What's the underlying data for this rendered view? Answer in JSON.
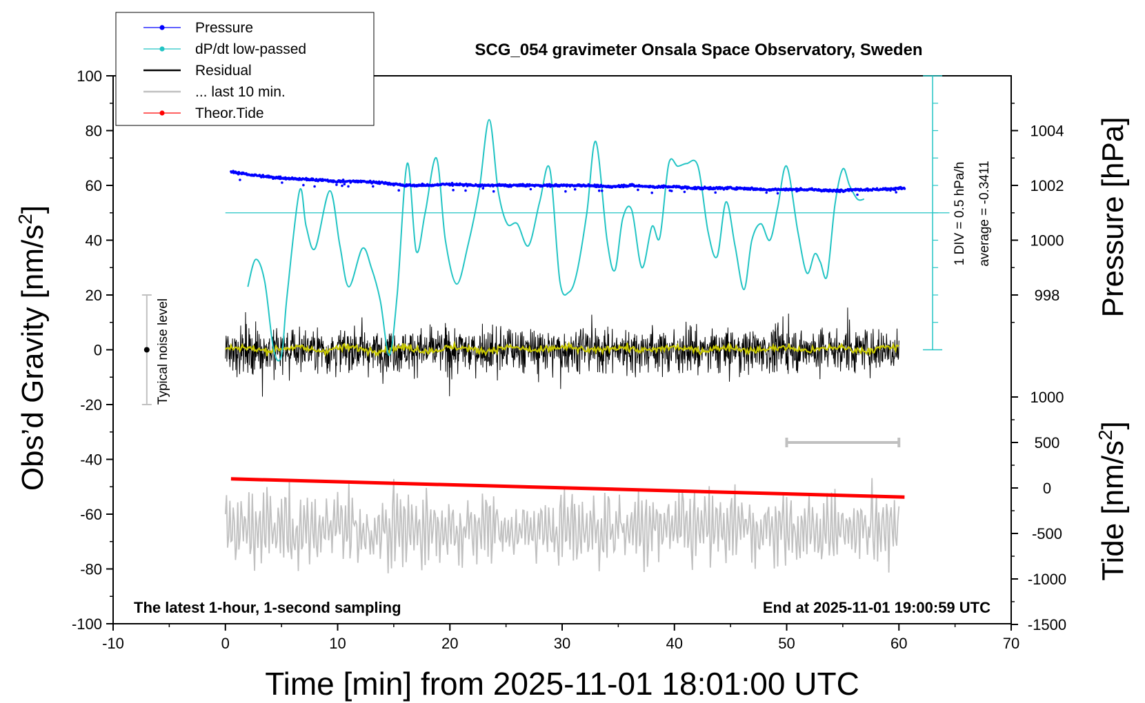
{
  "chart_data": {
    "type": "line",
    "title": "SCG_054 gravimeter Onsala Space Observatory, Sweden",
    "xlabel": "Time [min] from 2025-11-01 18:01:00 UTC",
    "ylabel_left": "Obs’d Gravity [nm/s",
    "ylabel_left_sup": "2",
    "ylabel_left_close": "]",
    "ylabel_right_top": "Pressure [hPa]",
    "ylabel_right_bottom": "Tide [nm/s",
    "ylabel_right_bottom_sup": "2",
    "ylabel_right_bottom_close": "]",
    "xlim": [
      -10,
      70
    ],
    "ylim_left": [
      -100,
      100
    ],
    "pressure_axis_ticks": [
      "1004",
      "1002",
      "1000",
      "998"
    ],
    "pressure_axis_values": [
      1004,
      1002,
      1000,
      998
    ],
    "tide_axis_ticks": [
      "1000",
      "500",
      "0",
      "-500",
      "-1000",
      "-1500"
    ],
    "tide_axis_values": [
      1000,
      500,
      0,
      -500,
      -1000,
      -1500
    ],
    "x_ticks": [
      "-10",
      "0",
      "10",
      "20",
      "30",
      "40",
      "50",
      "60",
      "70"
    ],
    "x_tick_values": [
      -10,
      0,
      10,
      20,
      30,
      40,
      50,
      60,
      70
    ],
    "y_ticks": [
      "100",
      "80",
      "60",
      "40",
      "20",
      "0",
      "-20",
      "-40",
      "-60",
      "-80",
      "-100"
    ],
    "y_tick_values": [
      100,
      80,
      60,
      40,
      20,
      0,
      -20,
      -40,
      -60,
      -80,
      -100
    ],
    "legend": [
      {
        "name": "Pressure",
        "color": "#0000ff",
        "marker": true
      },
      {
        "name": "dP/dt low-passed",
        "color": "#22c4c4",
        "marker": true
      },
      {
        "name": "Residual",
        "color": "#000000",
        "marker": false
      },
      {
        "name": "... last 10 min.",
        "color": "#c0c0c0",
        "marker": false
      },
      {
        "name": "Theor.Tide",
        "color": "#ff0000",
        "marker": true
      }
    ],
    "legend_position": "top-left",
    "annotations": {
      "bottom_left": "The latest 1-hour, 1-second sampling",
      "bottom_right": "End at 2025-11-01 19:00:59 UTC",
      "noise_label": "Typical noise level",
      "div_label": "1 DIV = 0.5 hPa/h",
      "avg_label": "average = -0.3411"
    },
    "noise_level_range": [
      -20,
      20
    ],
    "noise_level_x": -7,
    "series": [
      {
        "name": "Pressure",
        "unit": "hPa",
        "x": [
          0.5,
          2,
          4,
          6,
          8,
          10,
          12,
          14,
          16,
          18,
          20,
          22,
          24,
          26,
          28,
          30,
          32,
          34,
          36,
          38,
          40,
          42,
          44,
          46,
          48,
          50,
          52,
          54,
          56,
          58,
          60.5
        ],
        "y": [
          1002.5,
          1002.4,
          1002.3,
          1002.25,
          1002.2,
          1002.15,
          1002.15,
          1002.1,
          1002.0,
          1002.0,
          1002.05,
          1002.0,
          1002.0,
          1002.0,
          1002.0,
          1002.0,
          1002.0,
          1001.95,
          1002.0,
          1001.95,
          1001.95,
          1001.9,
          1001.9,
          1001.9,
          1001.85,
          1001.85,
          1001.85,
          1001.8,
          1001.85,
          1001.85,
          1001.9
        ]
      },
      {
        "name": "dP/dt low-passed",
        "x": [
          2,
          2.7,
          3.5,
          4.3,
          5,
          5.5,
          6.6,
          7.2,
          8,
          9.3,
          10.2,
          11,
          12.2,
          13,
          13.8,
          14.6,
          15.3,
          16.2,
          17,
          17.8,
          18.8,
          19.6,
          20.6,
          21.6,
          22.6,
          23.5,
          24.3,
          25.1,
          26,
          27,
          28,
          28.9,
          29.8,
          30.6,
          31.3,
          32.2,
          33,
          34,
          34.7,
          35.4,
          36.2,
          37.1,
          38,
          38.7,
          39.5,
          40.3,
          41.1,
          42.1,
          43,
          43.8,
          44.6,
          45.4,
          46.2,
          46.9,
          47.7,
          48.5,
          49.2,
          50,
          51,
          51.8,
          52.5,
          53,
          53.6,
          54.3,
          55,
          55.6,
          56.3,
          56.9
        ],
        "y": [
          23,
          33,
          25,
          0,
          -2,
          20,
          58,
          45,
          37,
          58,
          38,
          23,
          37,
          30,
          18,
          -2,
          20,
          68,
          36,
          50,
          70,
          40,
          24,
          38,
          58,
          84,
          58,
          46,
          46,
          38,
          54,
          66,
          25,
          21,
          28,
          50,
          76,
          40,
          29,
          48,
          51,
          30,
          45,
          41,
          68,
          67,
          68,
          67,
          43,
          34,
          54,
          38,
          22,
          40,
          46,
          40,
          52,
          67,
          43,
          28,
          35,
          32,
          27,
          53,
          66,
          60,
          55,
          55
        ]
      },
      {
        "name": "Residual",
        "x_range": [
          0,
          60
        ],
        "envelope_y": [
          -10,
          10
        ],
        "extremes_y": [
          25,
          -24
        ]
      },
      {
        "name": "Residual smoothed",
        "color": "#c8c800",
        "x_range": [
          0,
          60
        ],
        "y_approx": 0
      },
      {
        "name": "Theor.Tide",
        "unit": "nm/s2",
        "x": [
          0.5,
          60.5
        ],
        "y": [
          100,
          -100
        ]
      },
      {
        "name": "... last 10 min.",
        "x_range": [
          0,
          60
        ],
        "y_range": [
          -85,
          -38
        ],
        "scale_bar_x": [
          50,
          60
        ]
      }
    ]
  }
}
